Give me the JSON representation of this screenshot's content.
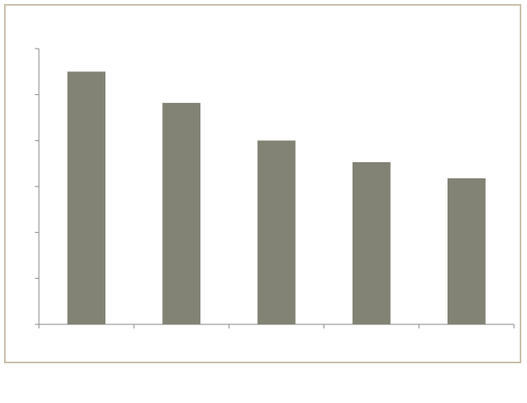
{
  "chart_data": {
    "type": "bar",
    "categories": [
      "",
      "",
      "",
      "",
      ""
    ],
    "values": [
      5.5,
      4.82,
      4.0,
      3.53,
      3.18
    ],
    "title": "",
    "xlabel": "",
    "ylabel": "",
    "ylim": [
      0,
      6
    ],
    "y_tick_count": 6,
    "grid": false,
    "legend": "none",
    "bar_color": "#828275",
    "axis_color": "#868686"
  }
}
